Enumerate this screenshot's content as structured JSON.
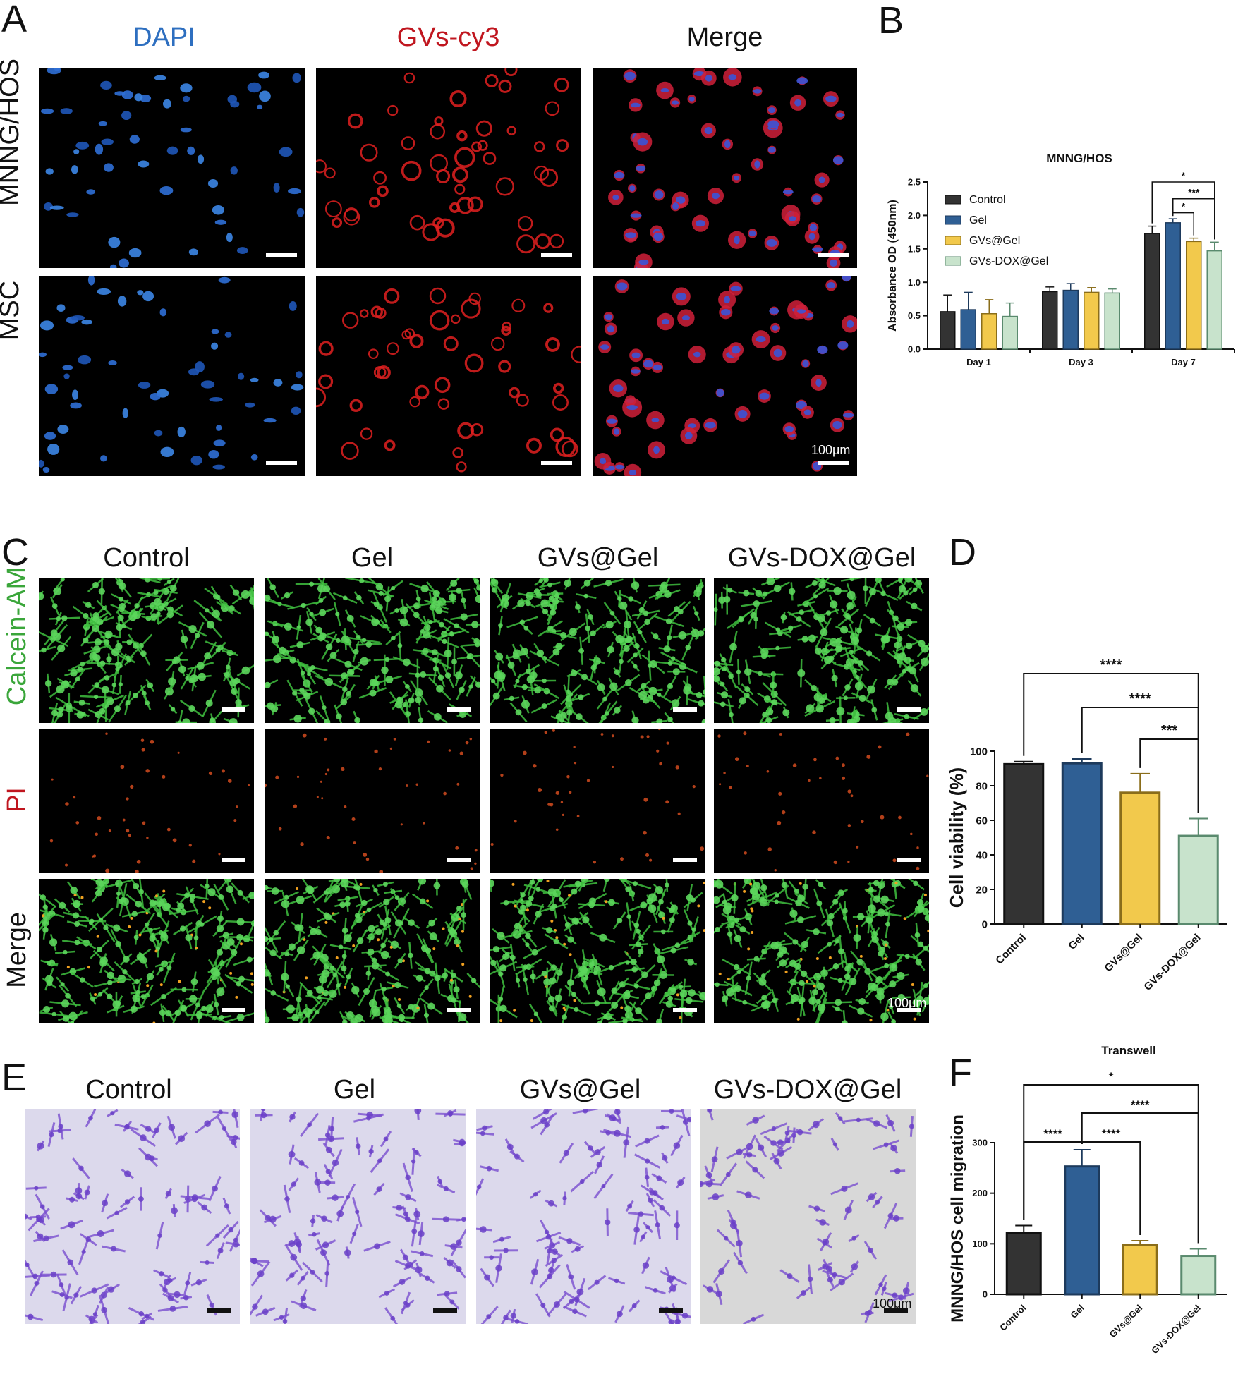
{
  "panels": {
    "a": "A",
    "b": "B",
    "c": "C",
    "d": "D",
    "e": "E",
    "f": "F"
  },
  "panelA": {
    "columns": [
      "DAPI",
      "GVs-cy3",
      "Merge"
    ],
    "rows": [
      "MNNG/HOS",
      "MSC"
    ],
    "column_colors": [
      "#2e6fc0",
      "#c0161f",
      "#111111"
    ],
    "scale_label": "100μm"
  },
  "panelC": {
    "columns": [
      "Control",
      "Gel",
      "GVs@Gel",
      "GVs-DOX@Gel"
    ],
    "rows": [
      "Calcein-AM",
      "PI",
      "Merge"
    ],
    "row_colors": [
      "#3aa63a",
      "#c0161f",
      "#111111"
    ],
    "scale_label": "100μm"
  },
  "panelE": {
    "columns": [
      "Control",
      "Gel",
      "GVs@Gel",
      "GVs-DOX@Gel"
    ],
    "scale_label": "100μm"
  },
  "colors": {
    "control": "#333333",
    "gel": "#2f5f94",
    "gvs_gel": "#f2c94c",
    "gvs_dox_gel": "#c8e3cc",
    "gvs_dox_gel_edge": "#5a8a6e"
  },
  "chart_data": [
    {
      "id": "B",
      "type": "bar",
      "title": "MNNG/HOS",
      "ylabel": "Absorbance OD (450nm)",
      "xlabel": "",
      "categories": [
        "Day 1",
        "Day 3",
        "Day 7"
      ],
      "ylim": [
        0,
        2.5
      ],
      "yticks": [
        "0.0",
        "0.5",
        "1.0",
        "1.5",
        "2.0",
        "2.5"
      ],
      "legend_position": "top-left",
      "series": [
        {
          "name": "Control",
          "values": [
            0.56,
            0.86,
            1.73
          ],
          "errors": [
            0.25,
            0.07,
            0.11
          ]
        },
        {
          "name": "Gel",
          "values": [
            0.59,
            0.88,
            1.89
          ],
          "errors": [
            0.26,
            0.1,
            0.06
          ]
        },
        {
          "name": "GVs@Gel",
          "values": [
            0.53,
            0.85,
            1.61
          ],
          "errors": [
            0.21,
            0.07,
            0.05
          ]
        },
        {
          "name": "GVs-DOX@Gel",
          "values": [
            0.49,
            0.84,
            1.47
          ],
          "errors": [
            0.2,
            0.06,
            0.13
          ]
        }
      ],
      "significance": [
        {
          "from": "Control",
          "to": "GVs-DOX@Gel",
          "category": "Day 7",
          "label": "*"
        },
        {
          "from": "Gel",
          "to": "GVs-DOX@Gel",
          "category": "Day 7",
          "label": "***"
        },
        {
          "from": "Gel",
          "to": "GVs@Gel",
          "category": "Day 7",
          "label": "*"
        }
      ]
    },
    {
      "id": "D",
      "type": "bar",
      "title": "",
      "ylabel": "Cell viability (%)",
      "xlabel": "",
      "categories": [
        "Control",
        "Gel",
        "GVs@Gel",
        "GVs-DOX@Gel"
      ],
      "values": [
        92.5,
        93,
        76,
        51
      ],
      "errors": [
        1.5,
        2.5,
        11,
        10
      ],
      "ylim": [
        0,
        100
      ],
      "yticks": [
        "0",
        "20",
        "40",
        "60",
        "80",
        "100"
      ],
      "significance": [
        {
          "from": "Control",
          "to": "GVs-DOX@Gel",
          "label": "****"
        },
        {
          "from": "Gel",
          "to": "GVs-DOX@Gel",
          "label": "****"
        },
        {
          "from": "GVs@Gel",
          "to": "GVs-DOX@Gel",
          "label": "***"
        }
      ]
    },
    {
      "id": "F",
      "type": "bar",
      "title": "Transwell",
      "ylabel": "MNNG/HOS cell migration",
      "xlabel": "",
      "categories": [
        "Control",
        "Gel",
        "GVs@Gel",
        "GVs-DOX@Gel"
      ],
      "values": [
        121,
        253,
        98,
        76
      ],
      "errors": [
        15,
        33,
        8,
        14
      ],
      "ylim": [
        0,
        300
      ],
      "yticks": [
        "0",
        "100",
        "200",
        "300"
      ],
      "significance": [
        {
          "from": "Control",
          "to": "GVs-DOX@Gel",
          "label": "*"
        },
        {
          "from": "Gel",
          "to": "GVs-DOX@Gel",
          "label": "****"
        },
        {
          "from": "Control",
          "to": "Gel",
          "label": "****"
        },
        {
          "from": "Gel",
          "to": "GVs@Gel",
          "label": "****"
        }
      ]
    }
  ]
}
